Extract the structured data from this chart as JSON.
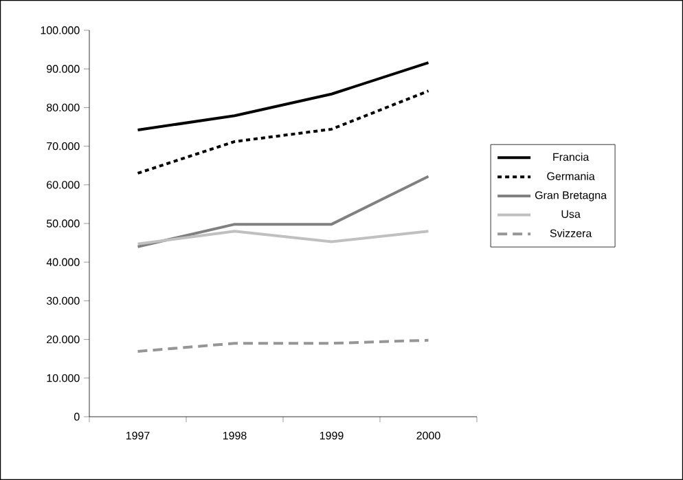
{
  "chart_data": {
    "type": "line",
    "categories": [
      "1997",
      "1998",
      "1999",
      "2000"
    ],
    "series": [
      {
        "name": "Francia",
        "color": "#000000",
        "line_style": "solid",
        "values": [
          74200,
          77900,
          83500,
          91600
        ]
      },
      {
        "name": "Germania",
        "color": "#000000",
        "line_style": "dotted",
        "values": [
          63000,
          71200,
          74400,
          84300
        ]
      },
      {
        "name": "Gran Bretagna",
        "color": "#808080",
        "line_style": "solid",
        "values": [
          44000,
          49800,
          49800,
          62200
        ]
      },
      {
        "name": "Usa",
        "color": "#c0c0c0",
        "line_style": "solid",
        "values": [
          44700,
          48000,
          45300,
          48000
        ]
      },
      {
        "name": "Svizzera",
        "color": "#969696",
        "line_style": "dashed",
        "values": [
          16900,
          19000,
          19000,
          19800
        ]
      }
    ],
    "ylim": [
      0,
      100000
    ],
    "yticks": [
      0,
      {
        "value": 10000,
        "label": "10.000"
      },
      {
        "value": 20000,
        "label": "20.000"
      },
      {
        "value": 30000,
        "label": "30.000"
      },
      {
        "value": 40000,
        "label": "40.000"
      },
      {
        "value": 50000,
        "label": "50.000"
      },
      {
        "value": 60000,
        "label": "60.000"
      },
      {
        "value": 70000,
        "label": "70.000"
      },
      {
        "value": 80000,
        "label": "80.000"
      },
      {
        "value": 90000,
        "label": "90.000"
      },
      {
        "value": 100000,
        "label": "100.000"
      }
    ],
    "legend": "right",
    "marker": "none",
    "grid": false
  }
}
